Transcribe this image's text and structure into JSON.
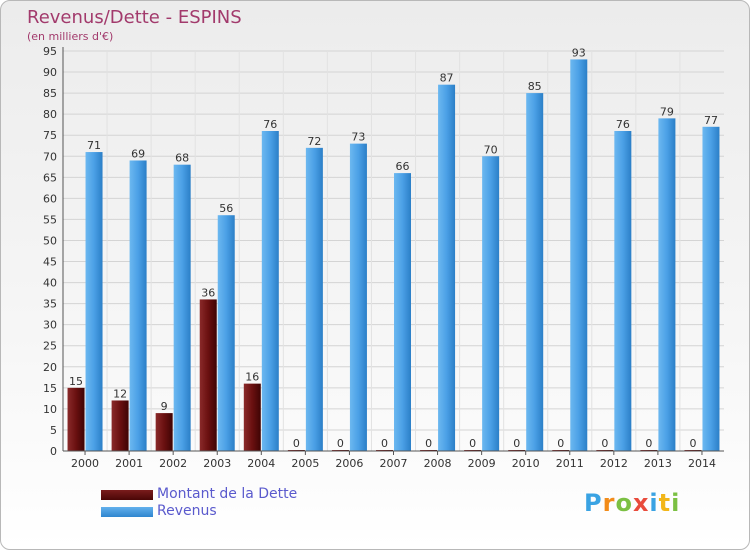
{
  "header": {
    "title": "Revenus/Dette - ESPINS",
    "subtitle": "(en milliers d'€)"
  },
  "colors": {
    "title": "#a23a6c",
    "debt": "#6a1010",
    "revenue": "#4ba0e6",
    "legend_text": "#5a5acd"
  },
  "chart_data": {
    "type": "bar",
    "title": "Revenus/Dette - ESPINS",
    "subtitle": "(en milliers d'€)",
    "categories": [
      "2000",
      "2001",
      "2002",
      "2003",
      "2004",
      "2005",
      "2006",
      "2007",
      "2008",
      "2009",
      "2010",
      "2011",
      "2012",
      "2013",
      "2014"
    ],
    "series": [
      {
        "name": "Montant de la Dette",
        "values": [
          15,
          12,
          9,
          36,
          16,
          0,
          0,
          0,
          0,
          0,
          0,
          0,
          0,
          0,
          0
        ]
      },
      {
        "name": "Revenus",
        "values": [
          71,
          69,
          68,
          56,
          76,
          72,
          73,
          66,
          87,
          70,
          85,
          93,
          76,
          79,
          77
        ]
      }
    ],
    "ylim": [
      0,
      95
    ],
    "ytick_step": 5,
    "grid": true,
    "legend": "bottom-left"
  },
  "legend": {
    "items": [
      {
        "label": "Montant de la Dette",
        "color": "#6a1010"
      },
      {
        "label": "Revenus",
        "color": "#4ba0e6"
      }
    ]
  },
  "logo": {
    "letters": [
      "P",
      "r",
      "o",
      "x",
      "i",
      "t",
      "i"
    ],
    "colors": [
      "#3aa3e3",
      "#f28c1a",
      "#7bc043",
      "#e94b3c",
      "#3aa3e3",
      "#f2b61a",
      "#7bc043"
    ]
  }
}
